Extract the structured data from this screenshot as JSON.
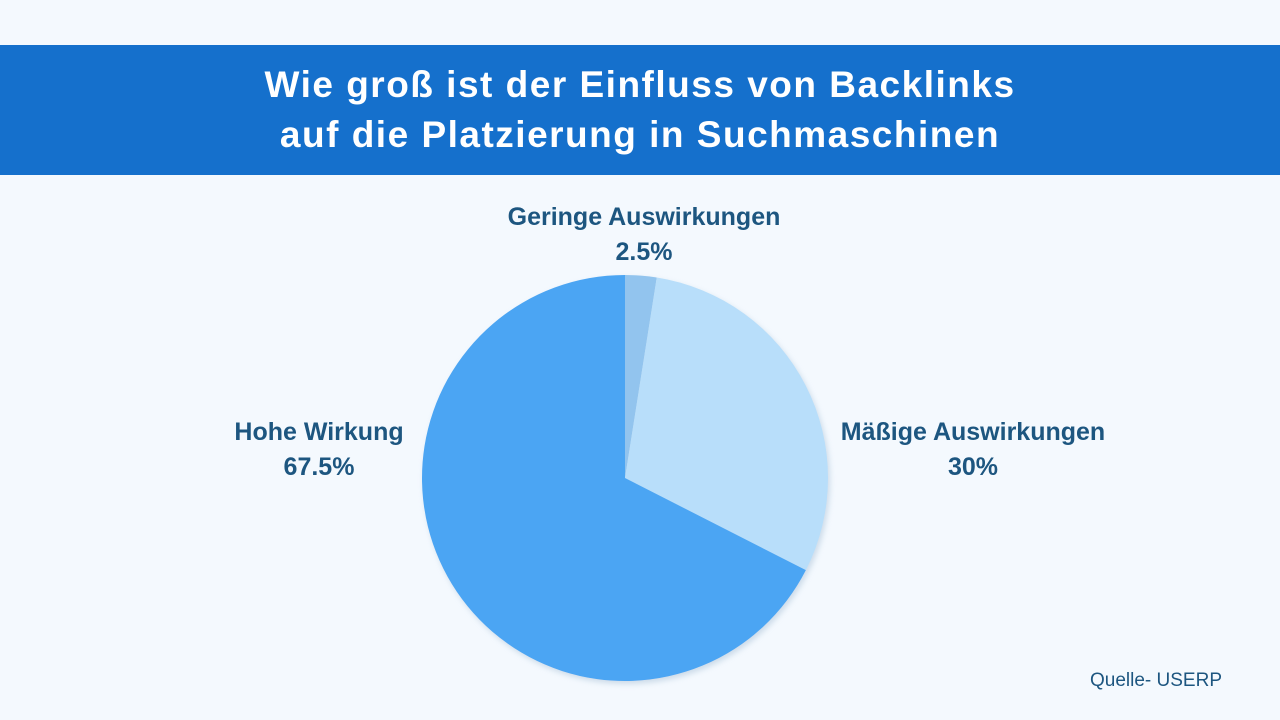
{
  "title_lines": [
    "Wie groß ist der Einfluss von Backlinks",
    "auf die Platzierung in Suchmaschinen"
  ],
  "source": "Quelle- USERP",
  "chart_data": {
    "type": "pie",
    "title": "Wie groß ist der Einfluss von Backlinks auf die Platzierung in Suchmaschinen",
    "slices": [
      {
        "label": "Geringe Auswirkungen",
        "value": 2.5,
        "value_label": "2.5%",
        "color": "#92c4ee"
      },
      {
        "label": "Mäßige Auswirkungen",
        "value": 30,
        "value_label": "30%",
        "color": "#b8defa"
      },
      {
        "label": "Hohe Wirkung",
        "value": 67.5,
        "value_label": "67.5%",
        "color": "#4ba5f3"
      }
    ],
    "start": "12 o'clock",
    "direction": "clockwise"
  }
}
